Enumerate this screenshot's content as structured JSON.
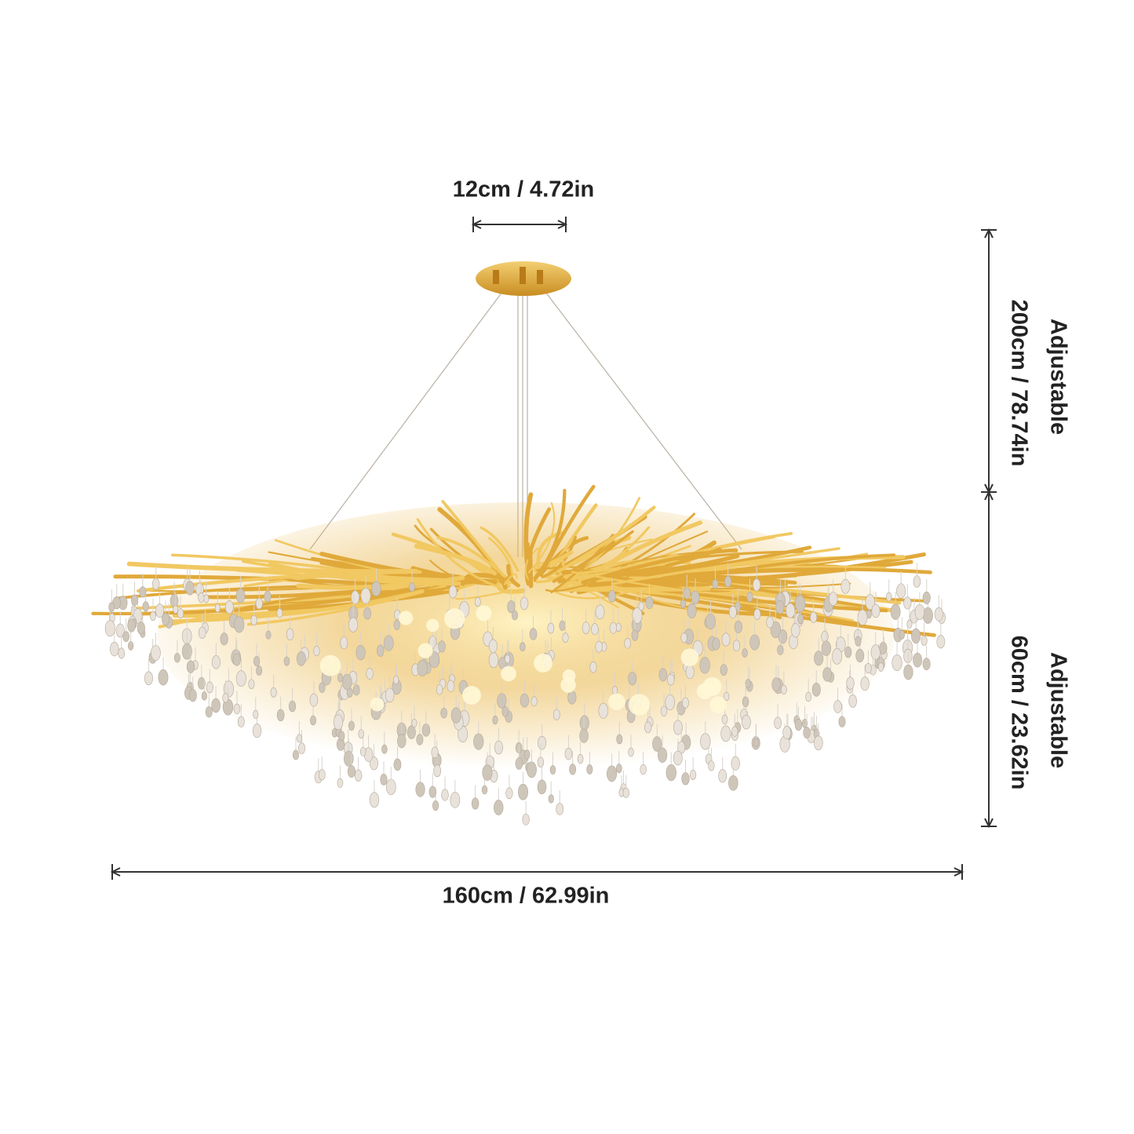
{
  "dimensions": {
    "canopy_width": "12cm / 4.72in",
    "cable_note": "Adjustable",
    "cable_length": "200cm / 78.74in",
    "body_note": "Adjustable",
    "body_height": "60cm / 23.62in",
    "body_width": "160cm / 62.99in"
  }
}
